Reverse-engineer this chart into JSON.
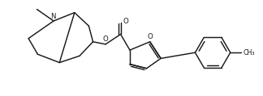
{
  "bg_color": "#ffffff",
  "line_color": "#1a1a1a",
  "lw": 1.05,
  "fig_width": 3.24,
  "fig_height": 1.19,
  "dpi": 100,
  "xlim": [
    8,
    322
  ],
  "ylim": [
    3,
    116
  ]
}
